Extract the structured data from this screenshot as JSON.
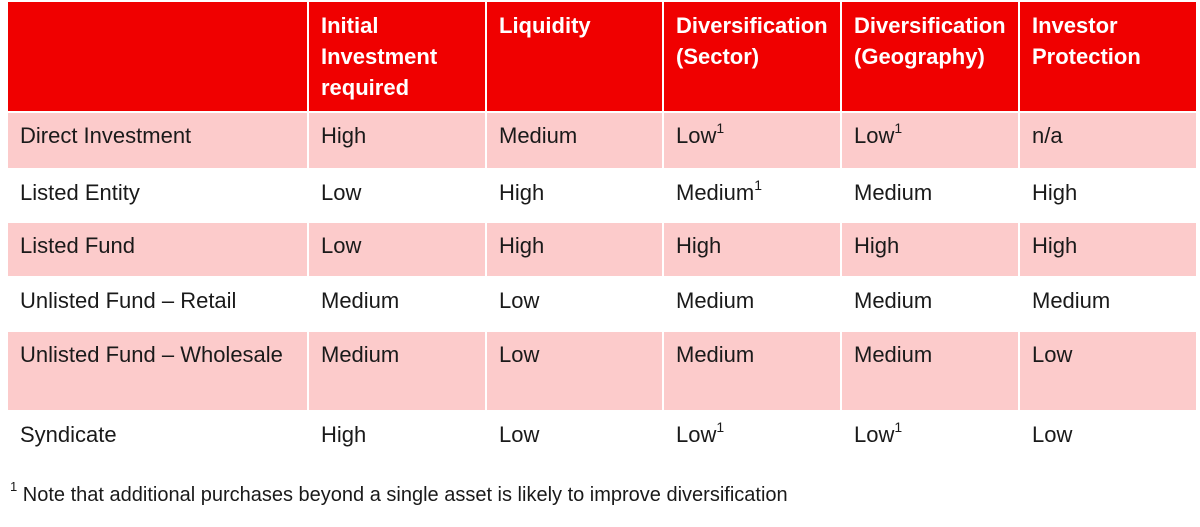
{
  "table": {
    "header": [
      "Initial Investment required",
      "Liquidity",
      "Diversification (Sector)",
      "Diversification (Geography)",
      "Investor Protection"
    ],
    "rows": [
      {
        "label": "Direct Investment",
        "cells": [
          "High",
          "Medium",
          {
            "text": "Low",
            "sup": "1"
          },
          {
            "text": "Low",
            "sup": "1"
          },
          "n/a"
        ]
      },
      {
        "label": "Listed Entity",
        "cells": [
          "Low",
          "High",
          {
            "text": "Medium",
            "sup": "1"
          },
          "Medium",
          "High"
        ]
      },
      {
        "label": "Listed Fund",
        "cells": [
          "Low",
          "High",
          "High",
          "High",
          "High"
        ]
      },
      {
        "label": "Unlisted Fund – Retail",
        "cells": [
          "Medium",
          "Low",
          "Medium",
          "Medium",
          "Medium"
        ]
      },
      {
        "label": "Unlisted Fund – Wholesale",
        "cells": [
          "Medium",
          "Low",
          "Medium",
          "Medium",
          "Low"
        ]
      },
      {
        "label": "Syndicate",
        "cells": [
          "High",
          "Low",
          {
            "text": "Low",
            "sup": "1"
          },
          {
            "text": "Low",
            "sup": "1"
          },
          "Low"
        ]
      }
    ]
  },
  "footnote": {
    "marker": "1",
    "text": "Note that additional purchases beyond a single asset is likely to improve diversification"
  }
}
